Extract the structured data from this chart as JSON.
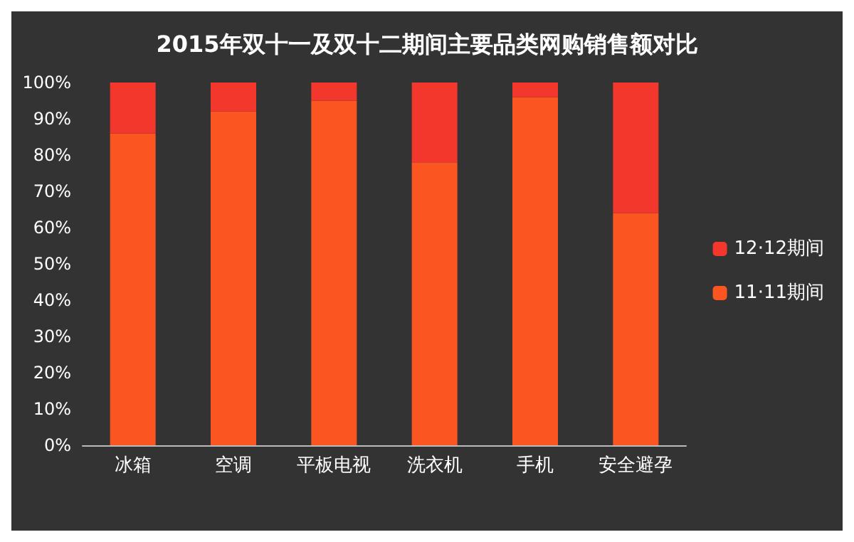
{
  "chart_data": {
    "type": "bar",
    "title": "2015年双十一及双十二期间主要品类网购销售额对比",
    "categories": [
      "冰箱",
      "空调",
      "平板电视",
      "洗衣机",
      "手机",
      "安全避孕"
    ],
    "series": [
      {
        "name": "11·11期间",
        "color": "#fb5522",
        "values": [
          86,
          92,
          95,
          78,
          96,
          64
        ]
      },
      {
        "name": "12·12期间",
        "color": "#f3372c",
        "values": [
          14,
          8,
          5,
          22,
          4,
          36
        ]
      }
    ],
    "stacked": true,
    "ylim": [
      0,
      100
    ],
    "yticks": [
      {
        "value": 0,
        "label": "0%"
      },
      {
        "value": 10,
        "label": "10%"
      },
      {
        "value": 20,
        "label": "20%"
      },
      {
        "value": 30,
        "label": "30%"
      },
      {
        "value": 40,
        "label": "40%"
      },
      {
        "value": 50,
        "label": "50%"
      },
      {
        "value": 60,
        "label": "60%"
      },
      {
        "value": 70,
        "label": "70%"
      },
      {
        "value": 80,
        "label": "80%"
      },
      {
        "value": 90,
        "label": "90%"
      },
      {
        "value": 100,
        "label": "100%"
      }
    ],
    "grid": false,
    "legend": "right"
  }
}
